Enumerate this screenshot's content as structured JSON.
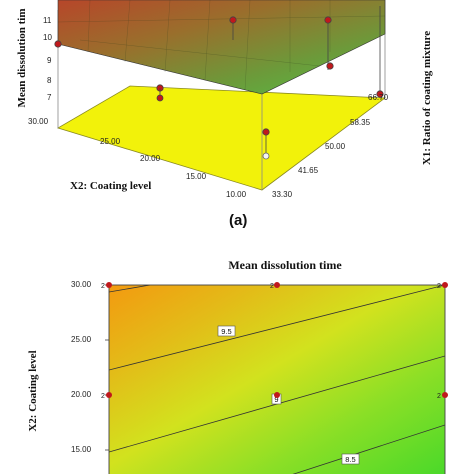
{
  "panel_label": "(a)",
  "chart_data": [
    {
      "type": "surface",
      "zlabel": "Mean dissolution tim",
      "xlabel": "X2: Coating level",
      "ylabel": "X1: Ratio of coating mixture",
      "z_ticks": [
        "11",
        "10",
        "9",
        "8",
        "7"
      ],
      "x_ticks": [
        "30.00",
        "25.00",
        "20.00",
        "15.00",
        "10.00"
      ],
      "y_ticks": [
        "33.30",
        "41.65",
        "50.00",
        "58.35",
        "66.70"
      ],
      "colors": {
        "surface_high": "#b7462a",
        "surface_low": "#55bf45",
        "floor": "#f2f20a",
        "design_point": "#c0181c"
      }
    },
    {
      "type": "contour",
      "title": "Mean dissolution time",
      "ylabel": "X2: Coating level",
      "y_ticks": [
        "30.00",
        "25.00",
        "20.00",
        "15.00"
      ],
      "ylim": [
        10,
        30
      ],
      "contour_labels": [
        "9.5",
        "9",
        "8.5"
      ],
      "point_labels": [
        "2",
        "2",
        "2",
        "2",
        "2"
      ],
      "colors": {
        "high": "#f39a10",
        "mid": "#d2e21e",
        "low": "#44d82a",
        "design_point": "#c0181c"
      }
    }
  ]
}
